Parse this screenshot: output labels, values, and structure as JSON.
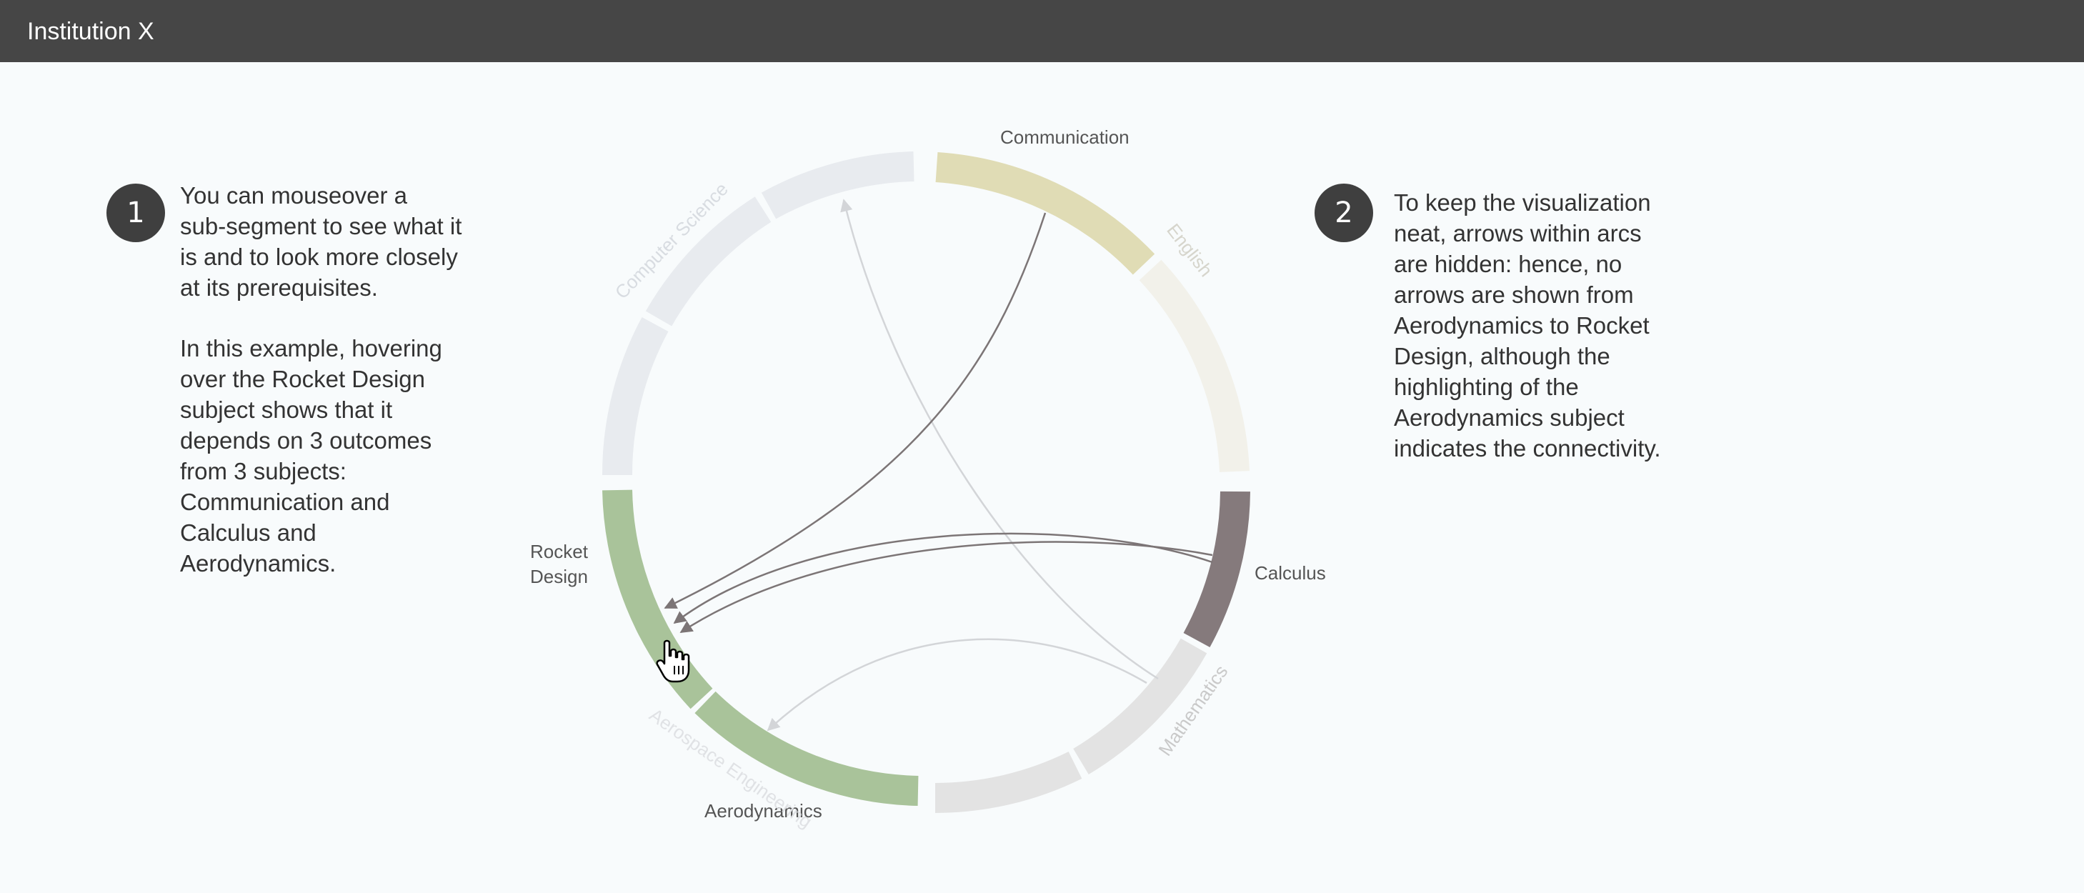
{
  "header": {
    "title": "Institution X"
  },
  "step1": {
    "number": "1",
    "paragraph1": "You can mouseover a\nsub-segment to see what it\nis and to look more closely\nat its prerequisites.",
    "paragraph2": "In this example, hovering\nover the Rocket Design\nsubject shows that it\ndepends on 3 outcomes\nfrom 3 subjects:\nCommunication and\nCalculus and\nAerodynamics."
  },
  "step2": {
    "number": "2",
    "paragraph": "To keep the visualization\nneat, arrows within arcs\nare hidden: hence, no\narrows are shown from\nAerodynamics to Rocket\nDesign, although the\nhighlighting of the\nAerodynamics subject\nindicates the connectivity."
  },
  "diagram": {
    "groups": [
      {
        "id": "communication",
        "label": "Communication"
      },
      {
        "id": "english",
        "label": "English"
      },
      {
        "id": "calculus",
        "label": "Calculus"
      },
      {
        "id": "mathematics",
        "label": "Mathematics"
      },
      {
        "id": "aerodynamics",
        "label": "Aerodynamics"
      },
      {
        "id": "aerospace",
        "label": "Aerospace Engineering"
      },
      {
        "id": "rocket",
        "label": "Rocket Design"
      },
      {
        "id": "cs",
        "label": "Computer Science"
      }
    ],
    "hovered_subject": "Rocket Design",
    "colors": {
      "communication": "#e0dcb5",
      "english": "#f2f1ea",
      "calculus": "#857a7c",
      "mathematics": "#e3e3e3",
      "aerospace_highlight": "#a9c39a",
      "cs": "#e8ebef",
      "active_link": "#7c7576",
      "faded_link": "#d3d5d8"
    }
  }
}
